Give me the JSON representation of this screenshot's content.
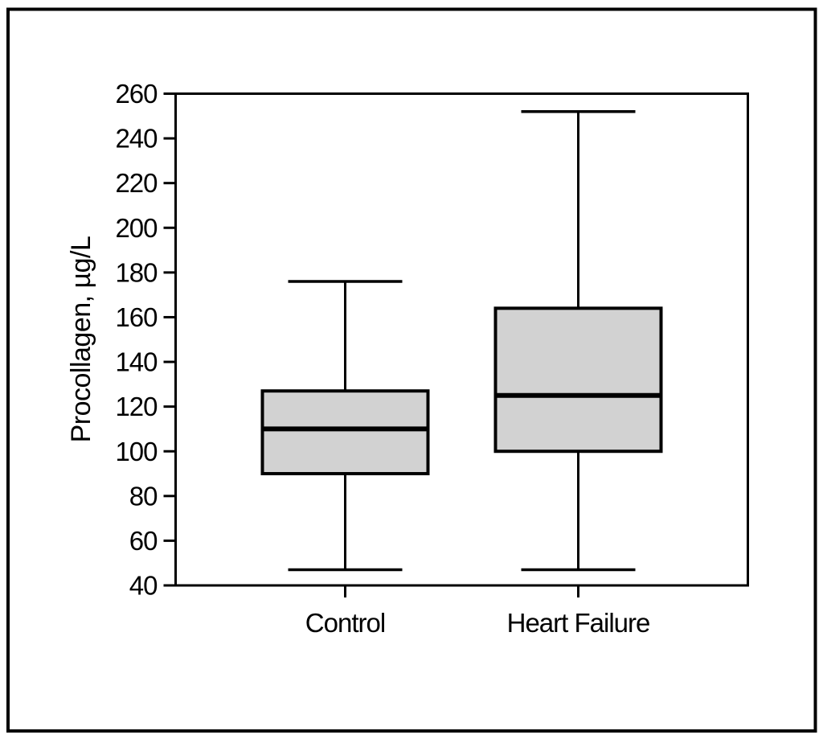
{
  "figure": {
    "background": "#ffffff",
    "border_color": "#000000"
  },
  "chart_data": {
    "type": "boxplot",
    "title": "",
    "xlabel": "",
    "ylabel": "Procollagen, µg/L",
    "ylim": [
      40,
      260
    ],
    "ytick_step": 20,
    "yticks": [
      40,
      60,
      80,
      100,
      120,
      140,
      160,
      180,
      200,
      220,
      240,
      260
    ],
    "categories": [
      "Control",
      "Heart Failure"
    ],
    "series": [
      {
        "name": "Control",
        "whisker_low": 47,
        "q1": 90,
        "median": 110,
        "q3": 127,
        "whisker_high": 176
      },
      {
        "name": "Heart Failure",
        "whisker_low": 47,
        "q1": 100,
        "median": 125,
        "q3": 164,
        "whisker_high": 252
      }
    ],
    "grid": false,
    "legend": false,
    "colors": {
      "box_fill": "#d2d2d2",
      "line": "#000000",
      "background": "#ffffff"
    }
  }
}
